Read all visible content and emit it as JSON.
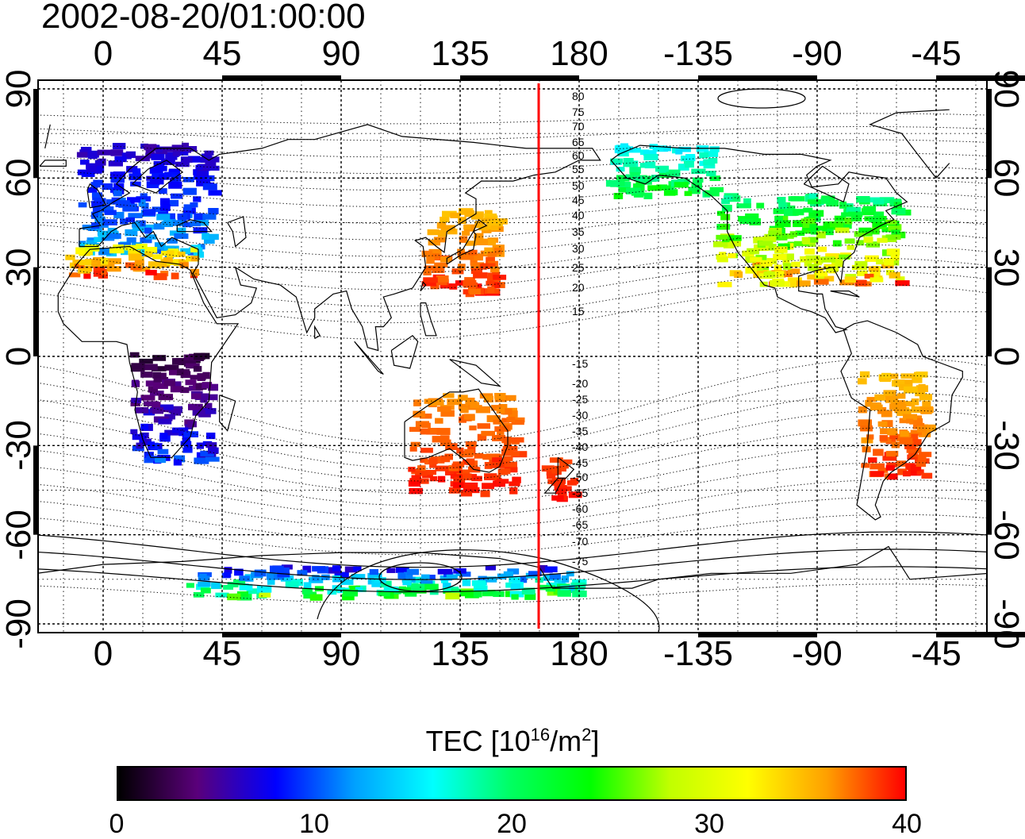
{
  "title": "2002-08-20/01:00:00",
  "x_ticks": [
    "0",
    "45",
    "90",
    "135",
    "180",
    "-135",
    "-90",
    "-45"
  ],
  "y_ticks": [
    "90",
    "60",
    "30",
    "0",
    "-30",
    "-60",
    "-90"
  ],
  "colorbar": {
    "title_prefix": "TEC  [10",
    "title_exp": "16",
    "title_unit": "/m",
    "title_exp2": "2",
    "title_suffix": "]",
    "ticks": [
      "0",
      "10",
      "20",
      "30",
      "40"
    ],
    "stops": [
      "#000000",
      "#5a007a",
      "#0000ff",
      "#00a0ff",
      "#00ffff",
      "#00ff60",
      "#00ff00",
      "#c0ff00",
      "#ffff00",
      "#ffa000",
      "#ff0000"
    ]
  },
  "map": {
    "meridian_marker_lon": 165,
    "meridian_marker_color": "#ff0000",
    "magnetic_latitude_labels": [
      "80",
      "75",
      "70",
      "65",
      "60",
      "55",
      "50",
      "45",
      "40",
      "35",
      "30",
      "25",
      "20",
      "15",
      "-15",
      "-20",
      "-25",
      "-30",
      "-35",
      "-40",
      "-45",
      "-50",
      "-55",
      "-60",
      "-65",
      "-70",
      "-75"
    ],
    "tec_regions": [
      {
        "name": "europe",
        "lon": [
          -10,
          40
        ],
        "lat": [
          35,
          72
        ],
        "tec": [
          5,
          14
        ]
      },
      {
        "name": "north-africa",
        "lon": [
          -15,
          35
        ],
        "lat": [
          28,
          38
        ],
        "tec": [
          30,
          40
        ]
      },
      {
        "name": "japan",
        "lon": [
          120,
          148
        ],
        "lat": [
          22,
          50
        ],
        "tec": [
          34,
          40
        ]
      },
      {
        "name": "north-america",
        "lon": [
          -130,
          -60
        ],
        "lat": [
          25,
          55
        ],
        "tec": [
          17,
          38
        ]
      },
      {
        "name": "alaska",
        "lon": [
          -170,
          -130
        ],
        "lat": [
          55,
          72
        ],
        "tec": [
          14,
          24
        ]
      },
      {
        "name": "australia",
        "lon": [
          115,
          155
        ],
        "lat": [
          -45,
          -12
        ],
        "tec": [
          36,
          40
        ]
      },
      {
        "name": "new-zealand",
        "lon": [
          165,
          178
        ],
        "lat": [
          -47,
          -34
        ],
        "tec": [
          38,
          40
        ]
      },
      {
        "name": "south-america",
        "lon": [
          -75,
          -50
        ],
        "lat": [
          -40,
          -5
        ],
        "tec": [
          34,
          40
        ]
      },
      {
        "name": "africa",
        "lon": [
          10,
          40
        ],
        "lat": [
          -35,
          2
        ],
        "tec": [
          1,
          10
        ]
      },
      {
        "name": "antarctic",
        "lon": [
          30,
          180
        ],
        "lat": [
          -80,
          -70
        ],
        "tec": [
          4,
          28
        ]
      }
    ]
  }
}
